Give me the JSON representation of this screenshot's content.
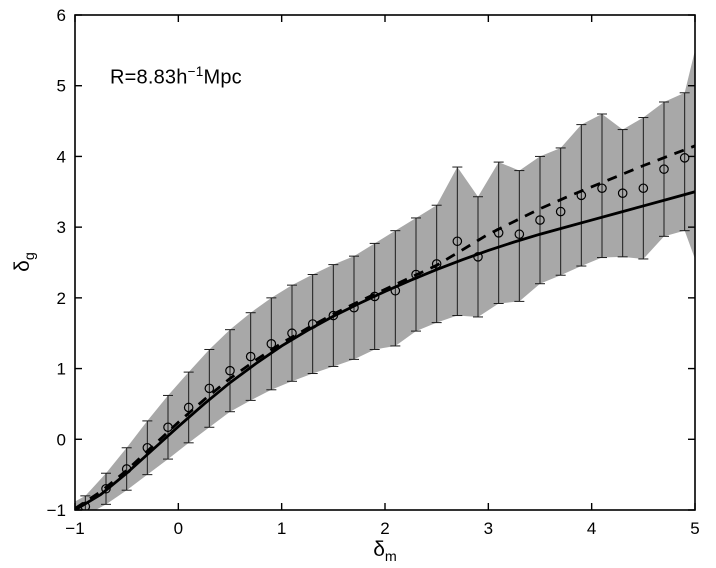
{
  "chart_data": {
    "type": "line",
    "title": "",
    "annotation": {
      "prefix": "R=8.83h",
      "sup": "−1",
      "suffix": "Mpc"
    },
    "xlabel": {
      "base": "δ",
      "sub": "m"
    },
    "ylabel": {
      "base": "δ",
      "sub": "g"
    },
    "xlim": [
      -1,
      5
    ],
    "ylim": [
      -1,
      6
    ],
    "xticks": [
      -1,
      0,
      1,
      2,
      3,
      4,
      5
    ],
    "yticks": [
      -1,
      0,
      1,
      2,
      3,
      4,
      5,
      6
    ],
    "grid": false,
    "legend": "none",
    "colors": {
      "band": "#a8a8a8",
      "line": "#000000",
      "errorbar": "#1c1c1c",
      "marker": "#000000"
    },
    "points": {
      "x": [
        -0.9,
        -0.7,
        -0.5,
        -0.3,
        -0.1,
        0.1,
        0.3,
        0.5,
        0.7,
        0.9,
        1.1,
        1.3,
        1.5,
        1.7,
        1.9,
        2.1,
        2.3,
        2.5,
        2.7,
        2.9,
        3.1,
        3.3,
        3.5,
        3.7,
        3.9,
        4.1,
        4.3,
        4.5,
        4.7,
        4.9
      ],
      "y": [
        -0.95,
        -0.7,
        -0.42,
        -0.12,
        0.17,
        0.45,
        0.72,
        0.97,
        1.17,
        1.35,
        1.5,
        1.63,
        1.75,
        1.86,
        2.02,
        2.1,
        2.33,
        2.48,
        2.8,
        2.58,
        2.92,
        2.9,
        3.1,
        3.22,
        3.45,
        3.55,
        3.48,
        3.55,
        3.82,
        3.98
      ],
      "upper": [
        -0.8,
        -0.48,
        -0.12,
        0.26,
        0.62,
        0.95,
        1.27,
        1.55,
        1.79,
        2.0,
        2.18,
        2.33,
        2.47,
        2.59,
        2.77,
        2.95,
        3.13,
        3.31,
        3.85,
        3.43,
        3.92,
        3.8,
        4.0,
        4.12,
        4.45,
        4.6,
        4.38,
        4.55,
        4.77,
        4.9
      ],
      "lower": [
        -1.08,
        -0.92,
        -0.72,
        -0.5,
        -0.28,
        -0.05,
        0.17,
        0.39,
        0.55,
        0.7,
        0.82,
        0.93,
        1.03,
        1.13,
        1.27,
        1.32,
        1.53,
        1.65,
        1.75,
        1.73,
        1.92,
        1.95,
        2.2,
        2.32,
        2.45,
        2.57,
        2.58,
        2.55,
        2.87,
        2.95
      ]
    },
    "band": {
      "x": [
        -1,
        -0.9,
        -0.7,
        -0.5,
        -0.3,
        -0.1,
        0.1,
        0.3,
        0.5,
        0.7,
        0.9,
        1.1,
        1.3,
        1.5,
        1.7,
        1.9,
        2.1,
        2.3,
        2.5,
        2.7,
        2.9,
        3.1,
        3.3,
        3.5,
        3.7,
        3.9,
        4.1,
        4.3,
        4.5,
        4.7,
        4.9,
        5
      ],
      "upper": [
        -0.88,
        -0.8,
        -0.48,
        -0.12,
        0.26,
        0.62,
        0.95,
        1.27,
        1.55,
        1.79,
        2.0,
        2.18,
        2.33,
        2.47,
        2.59,
        2.77,
        2.95,
        3.13,
        3.31,
        3.85,
        3.43,
        3.92,
        3.8,
        4.0,
        4.12,
        4.45,
        4.6,
        4.38,
        4.55,
        4.77,
        4.9,
        5.5
      ],
      "lower": [
        -1.02,
        -1.08,
        -0.92,
        -0.72,
        -0.5,
        -0.28,
        -0.05,
        0.17,
        0.39,
        0.55,
        0.7,
        0.82,
        0.93,
        1.03,
        1.13,
        1.27,
        1.32,
        1.53,
        1.65,
        1.75,
        1.73,
        1.92,
        1.95,
        2.2,
        2.32,
        2.45,
        2.57,
        2.58,
        2.55,
        2.87,
        2.95,
        2.55
      ]
    },
    "solid_curve": {
      "x": [
        -1,
        -0.75,
        -0.5,
        -0.25,
        0,
        0.25,
        0.5,
        0.75,
        1,
        1.25,
        1.5,
        1.75,
        2,
        2.25,
        2.5,
        2.75,
        3,
        3.25,
        3.5,
        3.75,
        4,
        4.25,
        4.5,
        4.75,
        5
      ],
      "y": [
        -1.0,
        -0.78,
        -0.48,
        -0.15,
        0.18,
        0.5,
        0.8,
        1.07,
        1.32,
        1.54,
        1.74,
        1.92,
        2.09,
        2.25,
        2.4,
        2.54,
        2.67,
        2.79,
        2.9,
        3.0,
        3.1,
        3.2,
        3.3,
        3.4,
        3.5
      ]
    },
    "dashed_curve": {
      "x": [
        -1,
        -0.75,
        -0.5,
        -0.25,
        0,
        0.25,
        0.5,
        0.75,
        1,
        1.25,
        1.5,
        1.75,
        2,
        2.25,
        2.5,
        2.75,
        3,
        3.25,
        3.5,
        3.75,
        4,
        4.25,
        4.5,
        4.75,
        5
      ],
      "y": [
        -0.98,
        -0.74,
        -0.44,
        -0.1,
        0.24,
        0.56,
        0.86,
        1.12,
        1.36,
        1.57,
        1.77,
        1.95,
        2.12,
        2.29,
        2.46,
        2.68,
        2.9,
        3.08,
        3.26,
        3.42,
        3.57,
        3.72,
        3.87,
        4.01,
        4.15
      ]
    }
  }
}
